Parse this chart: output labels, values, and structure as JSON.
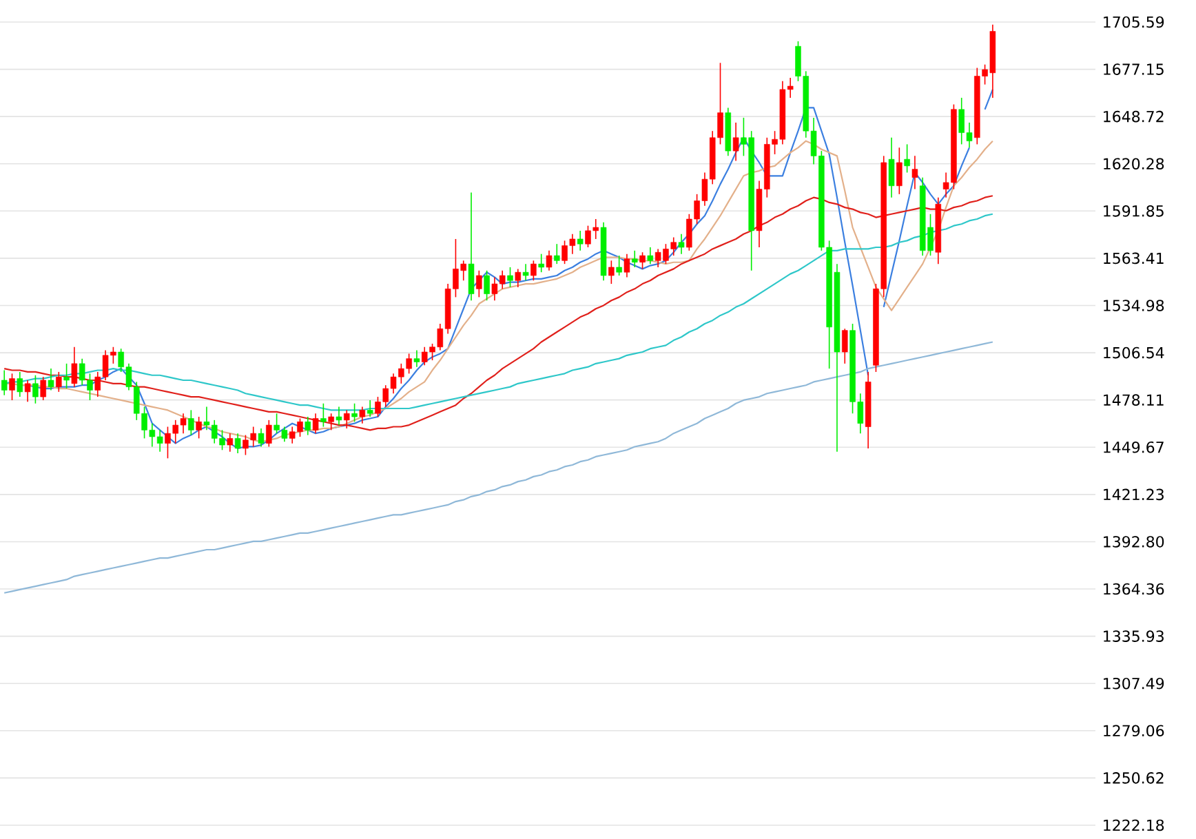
{
  "chart_data": {
    "type": "candlestick",
    "categories": [
      null,
      null,
      null,
      null,
      null,
      null,
      null,
      null,
      null,
      null,
      null,
      null,
      null,
      null,
      null,
      null,
      null,
      null,
      null,
      null,
      null,
      null,
      null,
      null,
      null,
      null,
      null,
      null,
      null,
      null,
      null,
      null,
      null,
      null,
      null,
      null,
      null,
      null,
      null,
      null,
      null,
      null,
      null,
      null,
      null,
      null,
      null,
      null,
      null,
      null,
      null,
      null,
      null,
      null,
      null,
      null,
      null,
      null,
      null,
      null,
      null,
      null,
      null,
      null,
      null,
      null,
      null,
      null,
      null,
      null,
      null,
      null,
      null,
      null,
      null,
      null,
      null,
      null,
      null,
      null,
      null,
      null,
      null,
      null,
      null,
      null,
      null,
      null,
      null,
      null,
      null,
      null,
      null,
      null,
      null,
      null,
      null,
      null,
      null,
      null,
      null,
      null,
      null,
      null,
      null,
      null,
      null,
      null,
      null,
      null,
      null,
      null,
      null,
      null,
      null,
      null,
      null,
      null,
      null,
      null,
      null,
      null,
      null,
      null,
      null,
      null,
      null,
      null
    ],
    "ohlc": [
      [
        1490,
        1496,
        1481,
        1484
      ],
      [
        1484,
        1494,
        1478,
        1491
      ],
      [
        1491,
        1495,
        1480,
        1483
      ],
      [
        1483,
        1490,
        1477,
        1488
      ],
      [
        1488,
        1493,
        1476,
        1480
      ],
      [
        1480,
        1492,
        1478,
        1490
      ],
      [
        1490,
        1497,
        1484,
        1486
      ],
      [
        1486,
        1495,
        1483,
        1492
      ],
      [
        1492,
        1500,
        1485,
        1490
      ],
      [
        1488,
        1510,
        1486,
        1500
      ],
      [
        1500,
        1503,
        1487,
        1490
      ],
      [
        1490,
        1494,
        1478,
        1484
      ],
      [
        1484,
        1495,
        1480,
        1492
      ],
      [
        1492,
        1508,
        1490,
        1505
      ],
      [
        1505,
        1510,
        1500,
        1507
      ],
      [
        1507,
        1509,
        1495,
        1498
      ],
      [
        1498,
        1500,
        1484,
        1486
      ],
      [
        1486,
        1489,
        1466,
        1470
      ],
      [
        1470,
        1474,
        1455,
        1460
      ],
      [
        1460,
        1464,
        1450,
        1456
      ],
      [
        1456,
        1460,
        1447,
        1452
      ],
      [
        1452,
        1462,
        1443,
        1458
      ],
      [
        1458,
        1466,
        1452,
        1463
      ],
      [
        1463,
        1470,
        1458,
        1467
      ],
      [
        1467,
        1472,
        1457,
        1460
      ],
      [
        1460,
        1468,
        1455,
        1465
      ],
      [
        1465,
        1474,
        1460,
        1463
      ],
      [
        1463,
        1466,
        1452,
        1455
      ],
      [
        1455,
        1460,
        1448,
        1451
      ],
      [
        1451,
        1458,
        1447,
        1455
      ],
      [
        1455,
        1458,
        1446,
        1449
      ],
      [
        1449,
        1457,
        1445,
        1454
      ],
      [
        1454,
        1462,
        1450,
        1458
      ],
      [
        1458,
        1461,
        1450,
        1452
      ],
      [
        1452,
        1466,
        1450,
        1463
      ],
      [
        1463,
        1470,
        1458,
        1460
      ],
      [
        1460,
        1462,
        1453,
        1455
      ],
      [
        1455,
        1462,
        1452,
        1459
      ],
      [
        1459,
        1467,
        1456,
        1465
      ],
      [
        1465,
        1468,
        1457,
        1460
      ],
      [
        1460,
        1470,
        1458,
        1467
      ],
      [
        1467,
        1476,
        1462,
        1465
      ],
      [
        1465,
        1470,
        1460,
        1468
      ],
      [
        1468,
        1474,
        1463,
        1466
      ],
      [
        1466,
        1472,
        1461,
        1470
      ],
      [
        1470,
        1476,
        1465,
        1468
      ],
      [
        1468,
        1474,
        1464,
        1472
      ],
      [
        1472,
        1478,
        1468,
        1470
      ],
      [
        1470,
        1480,
        1468,
        1477
      ],
      [
        1477,
        1487,
        1474,
        1485
      ],
      [
        1485,
        1494,
        1482,
        1492
      ],
      [
        1492,
        1500,
        1488,
        1497
      ],
      [
        1497,
        1506,
        1494,
        1503
      ],
      [
        1503,
        1508,
        1498,
        1501
      ],
      [
        1501,
        1510,
        1499,
        1507
      ],
      [
        1507,
        1512,
        1502,
        1510
      ],
      [
        1510,
        1524,
        1508,
        1521
      ],
      [
        1521,
        1548,
        1518,
        1545
      ],
      [
        1545,
        1575,
        1540,
        1557
      ],
      [
        1556,
        1562,
        1550,
        1560
      ],
      [
        1560,
        1603,
        1538,
        1542
      ],
      [
        1545,
        1556,
        1540,
        1553
      ],
      [
        1553,
        1556,
        1538,
        1542
      ],
      [
        1542,
        1552,
        1538,
        1548
      ],
      [
        1548,
        1556,
        1545,
        1553
      ],
      [
        1553,
        1558,
        1546,
        1550
      ],
      [
        1550,
        1557,
        1546,
        1555
      ],
      [
        1555,
        1560,
        1550,
        1553
      ],
      [
        1553,
        1562,
        1550,
        1560
      ],
      [
        1560,
        1566,
        1555,
        1558
      ],
      [
        1558,
        1568,
        1556,
        1565
      ],
      [
        1565,
        1572,
        1560,
        1562
      ],
      [
        1562,
        1574,
        1560,
        1571
      ],
      [
        1571,
        1578,
        1566,
        1575
      ],
      [
        1575,
        1580,
        1568,
        1572
      ],
      [
        1572,
        1583,
        1570,
        1580
      ],
      [
        1580,
        1587,
        1575,
        1582
      ],
      [
        1582,
        1585,
        1550,
        1553
      ],
      [
        1553,
        1562,
        1548,
        1558
      ],
      [
        1558,
        1565,
        1553,
        1555
      ],
      [
        1555,
        1566,
        1552,
        1563
      ],
      [
        1563,
        1568,
        1558,
        1561
      ],
      [
        1561,
        1567,
        1557,
        1565
      ],
      [
        1565,
        1570,
        1560,
        1562
      ],
      [
        1562,
        1569,
        1558,
        1567
      ],
      [
        1562,
        1572,
        1560,
        1569
      ],
      [
        1569,
        1576,
        1565,
        1573
      ],
      [
        1573,
        1578,
        1566,
        1570
      ],
      [
        1570,
        1590,
        1568,
        1587
      ],
      [
        1587,
        1602,
        1584,
        1598
      ],
      [
        1598,
        1615,
        1595,
        1611
      ],
      [
        1611,
        1640,
        1608,
        1636
      ],
      [
        1636,
        1681,
        1632,
        1651
      ],
      [
        1651,
        1654,
        1625,
        1628
      ],
      [
        1628,
        1645,
        1622,
        1636
      ],
      [
        1636,
        1648,
        1625,
        1632
      ],
      [
        1636,
        1640,
        1556,
        1580
      ],
      [
        1580,
        1610,
        1570,
        1605
      ],
      [
        1605,
        1636,
        1600,
        1632
      ],
      [
        1632,
        1640,
        1626,
        1635
      ],
      [
        1635,
        1670,
        1632,
        1665
      ],
      [
        1665,
        1672,
        1660,
        1667
      ],
      [
        1691,
        1694,
        1670,
        1673
      ],
      [
        1673,
        1676,
        1636,
        1640
      ],
      [
        1640,
        1648,
        1620,
        1625
      ],
      [
        1625,
        1628,
        1568,
        1570
      ],
      [
        1570,
        1574,
        1497,
        1522
      ],
      [
        1555,
        1560,
        1447,
        1507
      ],
      [
        1507,
        1521,
        1500,
        1520
      ],
      [
        1520,
        1524,
        1470,
        1477
      ],
      [
        1477,
        1482,
        1458,
        1464
      ],
      [
        1462,
        1495,
        1449,
        1489
      ],
      [
        1499,
        1548,
        1495,
        1545
      ],
      [
        1545,
        1625,
        1540,
        1621
      ],
      [
        1623,
        1636,
        1600,
        1607
      ],
      [
        1607,
        1630,
        1602,
        1621
      ],
      [
        1623,
        1632,
        1615,
        1619
      ],
      [
        1612,
        1625,
        1605,
        1617
      ],
      [
        1607,
        1612,
        1565,
        1568
      ],
      [
        1582,
        1590,
        1565,
        1568
      ],
      [
        1567,
        1600,
        1560,
        1596
      ],
      [
        1605,
        1615,
        1600,
        1609
      ],
      [
        1609,
        1656,
        1605,
        1653
      ],
      [
        1653,
        1660,
        1632,
        1639
      ],
      [
        1639,
        1645,
        1630,
        1634
      ],
      [
        1636,
        1678,
        1632,
        1673
      ],
      [
        1673,
        1680,
        1668,
        1677
      ],
      [
        1675,
        1704,
        1660,
        1700
      ]
    ],
    "colors": [
      "#00ee00",
      "#ff0000",
      "#00ee00",
      "#ff0000",
      "#00ee00",
      "#ff0000",
      "#00ee00",
      "#ff0000",
      "#00ee00",
      "#ff0000",
      "#00ee00",
      "#00ee00",
      "#ff0000",
      "#ff0000",
      "#ff0000",
      "#00ee00",
      "#00ee00",
      "#00ee00",
      "#00ee00",
      "#00ee00",
      "#00ee00",
      "#ff0000",
      "#ff0000",
      "#ff0000",
      "#00ee00",
      "#ff0000",
      "#00ee00",
      "#00ee00",
      "#00ee00",
      "#ff0000",
      "#00ee00",
      "#ff0000",
      "#ff0000",
      "#00ee00",
      "#ff0000",
      "#00ee00",
      "#00ee00",
      "#ff0000",
      "#ff0000",
      "#00ee00",
      "#ff0000",
      "#00ee00",
      "#ff0000",
      "#00ee00",
      "#ff0000",
      "#00ee00",
      "#ff0000",
      "#00ee00",
      "#ff0000",
      "#ff0000",
      "#ff0000",
      "#ff0000",
      "#ff0000",
      "#00ee00",
      "#ff0000",
      "#ff0000",
      "#ff0000",
      "#ff0000",
      "#ff0000",
      "#ff0000",
      "#00ee00",
      "#ff0000",
      "#00ee00",
      "#ff0000",
      "#ff0000",
      "#00ee00",
      "#ff0000",
      "#00ee00",
      "#ff0000",
      "#00ee00",
      "#ff0000",
      "#00ee00",
      "#ff0000",
      "#ff0000",
      "#00ee00",
      "#ff0000",
      "#ff0000",
      "#00ee00",
      "#ff0000",
      "#00ee00",
      "#ff0000",
      "#00ee00",
      "#ff0000",
      "#00ee00",
      "#ff0000",
      "#ff0000",
      "#ff0000",
      "#00ee00",
      "#ff0000",
      "#ff0000",
      "#ff0000",
      "#ff0000",
      "#ff0000",
      "#00ee00",
      "#ff0000",
      "#00ee00",
      "#00ee00",
      "#ff0000",
      "#ff0000",
      "#ff0000",
      "#ff0000",
      "#ff0000",
      "#00ee00",
      "#00ee00",
      "#00ee00",
      "#00ee00",
      "#00ee00",
      "#00ee00",
      "#ff0000",
      "#00ee00",
      "#00ee00",
      "#ff0000",
      "#ff0000",
      "#ff0000",
      "#00ee00",
      "#ff0000",
      "#00ee00",
      "#ff0000",
      "#00ee00",
      "#00ee00",
      "#ff0000",
      "#ff0000",
      "#ff0000",
      "#00ee00",
      "#00ee00",
      "#ff0000",
      "#ff0000",
      "#ff0000"
    ],
    "series": [
      {
        "type": "line",
        "color": "#3b7fe0",
        "values": [
          null,
          null,
          1487,
          1487,
          1486,
          1485,
          1485,
          1486,
          1486,
          1486,
          1487,
          1487,
          1490,
          1492,
          1495,
          1497,
          1492,
          1487,
          1476,
          1464,
          1460,
          1456,
          1452,
          1455,
          1457,
          1460,
          1462,
          1459,
          1456,
          1452,
          1449,
          1450,
          1450,
          1451,
          1454,
          1458,
          1461,
          1464,
          1462,
          1460,
          1458,
          1459,
          1461,
          1462,
          1463,
          1464,
          1466,
          1467,
          1468,
          1474,
          1479,
          1485,
          1490,
          1496,
          1501,
          1504,
          1506,
          1509,
          1521,
          1533,
          1545,
          1550,
          1555,
          1552,
          1548,
          1549,
          1549,
          1550,
          1551,
          1551,
          1552,
          1553,
          1556,
          1558,
          1561,
          1563,
          1566,
          1568,
          1566,
          1564,
          1561,
          1559,
          1557,
          1559,
          1560,
          1562,
          1567,
          1573,
          1578,
          1584,
          1589,
          1598,
          1608,
          1617,
          1627,
          1636,
          1628,
          1621,
          1613,
          1613,
          1613,
          1627,
          1640,
          1654,
          1654,
          1640,
          1626,
          1600,
          1573,
          1547,
          1520,
          1493,
          null,
          1534,
          1554,
          1574,
          1595,
          1615,
          1609,
          1602,
          1596,
          1602,
          1607,
          1619,
          1630,
          null,
          1653,
          1665
        ]
      },
      {
        "type": "line",
        "color": "#e3b08a",
        "values": [
          1488,
          1488,
          1487,
          1487,
          1487,
          1486,
          1486,
          1485,
          1485,
          1484,
          1483,
          1482,
          1481,
          1480,
          1479,
          1478,
          1477,
          1476,
          1475,
          1474,
          1473,
          1472,
          1470,
          1468,
          1466,
          1464,
          1462,
          1461,
          1459,
          1458,
          1457,
          1456,
          1454,
          1453,
          1454,
          1455,
          1457,
          1458,
          1459,
          1460,
          1460,
          1461,
          1461,
          1462,
          1464,
          1466,
          1468,
          1469,
          1471,
          1473,
          1476,
          1479,
          1483,
          1486,
          1489,
          1496,
          1502,
          1509,
          1516,
          1523,
          1529,
          1536,
          1539,
          1542,
          1545,
          1546,
          1547,
          1548,
          1548,
          1549,
          1550,
          1551,
          1553,
          1555,
          1558,
          1560,
          1562,
          1564,
          1564,
          1564,
          1563,
          1563,
          1562,
          1562,
          1561,
          1560,
          1561,
          1561,
          1562,
          1569,
          1575,
          1582,
          1589,
          1597,
          1605,
          1613,
          1615,
          1616,
          1618,
          1619,
          1623,
          1627,
          1630,
          1634,
          1632,
          1629,
          1627,
          1625,
          1604,
          1582,
          1570,
          1558,
          1546,
          1539,
          1532,
          1539,
          1546,
          1553,
          1560,
          1570,
          1580,
          1594,
          1607,
          1612,
          1618,
          1623,
          1629,
          1634
        ]
      },
      {
        "type": "line",
        "color": "#e0201b",
        "values": [
          1497,
          1496,
          1496,
          1495,
          1495,
          1494,
          1493,
          1493,
          1492,
          1492,
          1491,
          1490,
          1490,
          1489,
          1488,
          1488,
          1487,
          1486,
          1486,
          1485,
          1484,
          1483,
          1482,
          1481,
          1480,
          1480,
          1479,
          1478,
          1477,
          1476,
          1475,
          1474,
          1473,
          1472,
          1471,
          1471,
          1470,
          1469,
          1468,
          1467,
          1466,
          1465,
          1464,
          1463,
          1463,
          1462,
          1461,
          1460,
          1461,
          1461,
          1462,
          1462,
          1463,
          1465,
          1467,
          1469,
          1471,
          1473,
          1475,
          1479,
          1482,
          1486,
          1490,
          1493,
          1497,
          1500,
          1503,
          1506,
          1509,
          1513,
          1516,
          1519,
          1522,
          1525,
          1528,
          1530,
          1533,
          1535,
          1538,
          1540,
          1543,
          1545,
          1548,
          1550,
          1553,
          1555,
          1557,
          1560,
          1562,
          1564,
          1566,
          1569,
          1571,
          1573,
          1575,
          1578,
          1580,
          1583,
          1585,
          1588,
          1590,
          1593,
          1595,
          1598,
          1600,
          1599,
          1597,
          1596,
          1594,
          1593,
          1591,
          1590,
          1588,
          1589,
          1590,
          1591,
          1592,
          1593,
          1594,
          1593,
          1593,
          1592,
          1594,
          1595,
          1597,
          1598,
          1600,
          1601
        ]
      },
      {
        "type": "line",
        "color": "#2ec7c9",
        "values": [
          1488,
          1489,
          1489,
          1490,
          1491,
          1491,
          1492,
          1493,
          1493,
          1494,
          1494,
          1495,
          1496,
          1496,
          1497,
          1496,
          1496,
          1495,
          1494,
          1493,
          1493,
          1492,
          1491,
          1490,
          1490,
          1489,
          1488,
          1487,
          1486,
          1485,
          1484,
          1482,
          1481,
          1480,
          1479,
          1478,
          1477,
          1476,
          1475,
          1475,
          1474,
          1473,
          1472,
          1472,
          1472,
          1472,
          1472,
          1473,
          1473,
          1473,
          1473,
          1473,
          1473,
          1474,
          1475,
          1476,
          1477,
          1478,
          1479,
          1480,
          1481,
          1482,
          1483,
          1484,
          1485,
          1486,
          1488,
          1489,
          1490,
          1491,
          1492,
          1493,
          1494,
          1496,
          1497,
          1498,
          1500,
          1501,
          1502,
          1503,
          1505,
          1506,
          1507,
          1509,
          1510,
          1511,
          1514,
          1516,
          1519,
          1521,
          1524,
          1526,
          1529,
          1531,
          1534,
          1536,
          1539,
          1542,
          1545,
          1548,
          1551,
          1554,
          1556,
          1559,
          1562,
          1565,
          1568,
          1568,
          1569,
          1569,
          1569,
          1569,
          1570,
          1570,
          1571,
          1573,
          1574,
          1576,
          1577,
          1579,
          1580,
          1581,
          1583,
          1584,
          1586,
          1587,
          1589,
          1590
        ]
      },
      {
        "type": "line",
        "color": "#8fb8d8",
        "values": [
          1362,
          1363,
          1364,
          1365,
          1366,
          1367,
          1368,
          1369,
          1370,
          1372,
          1373,
          1374,
          1375,
          1376,
          1377,
          1378,
          1379,
          1380,
          1381,
          1382,
          1383,
          1383,
          1384,
          1385,
          1386,
          1387,
          1388,
          1388,
          1389,
          1390,
          1391,
          1392,
          1393,
          1393,
          1394,
          1395,
          1396,
          1397,
          1398,
          1398,
          1399,
          1400,
          1401,
          1402,
          1403,
          1404,
          1405,
          1406,
          1407,
          1408,
          1409,
          1409,
          1410,
          1411,
          1412,
          1413,
          1414,
          1415,
          1417,
          1418,
          1420,
          1421,
          1423,
          1424,
          1426,
          1427,
          1429,
          1430,
          1432,
          1433,
          1435,
          1436,
          1438,
          1439,
          1441,
          1442,
          1444,
          1445,
          1446,
          1447,
          1448,
          1450,
          1451,
          1452,
          1453,
          1455,
          1458,
          1460,
          1462,
          1464,
          1467,
          1469,
          1471,
          1473,
          1476,
          1478,
          1479,
          1480,
          1482,
          1483,
          1484,
          1485,
          1486,
          1487,
          1489,
          1490,
          1491,
          1492,
          1493,
          1494,
          1495,
          1497,
          1498,
          1499,
          1500,
          1501,
          1502,
          1503,
          1504,
          1505,
          1506,
          1507,
          1508,
          1509,
          1510,
          1511,
          1512,
          1513
        ]
      }
    ],
    "ylim": [
      1222.18,
      1705.59
    ],
    "yticks": [
      {
        "value": 1222.18,
        "label": "1222.18"
      },
      {
        "value": 1250.62,
        "label": "1250.62"
      },
      {
        "value": 1279.06,
        "label": "1279.06"
      },
      {
        "value": 1307.49,
        "label": "1307.49"
      },
      {
        "value": 1335.93,
        "label": "1335.93"
      },
      {
        "value": 1364.36,
        "label": "1364.36"
      },
      {
        "value": 1392.8,
        "label": "1392.80"
      },
      {
        "value": 1421.23,
        "label": "1421.23"
      },
      {
        "value": 1449.67,
        "label": "1449.67"
      },
      {
        "value": 1478.11,
        "label": "1478.11"
      },
      {
        "value": 1506.54,
        "label": "1506.54"
      },
      {
        "value": 1534.98,
        "label": "1534.98"
      },
      {
        "value": 1563.41,
        "label": "1563.41"
      },
      {
        "value": 1591.85,
        "label": "1591.85"
      },
      {
        "value": 1620.28,
        "label": "1620.28"
      },
      {
        "value": 1648.72,
        "label": "1648.72"
      },
      {
        "value": 1677.15,
        "label": "1677.15"
      },
      {
        "value": 1705.59,
        "label": "1705.59"
      }
    ],
    "grid": "y",
    "tick_labels": "y"
  }
}
